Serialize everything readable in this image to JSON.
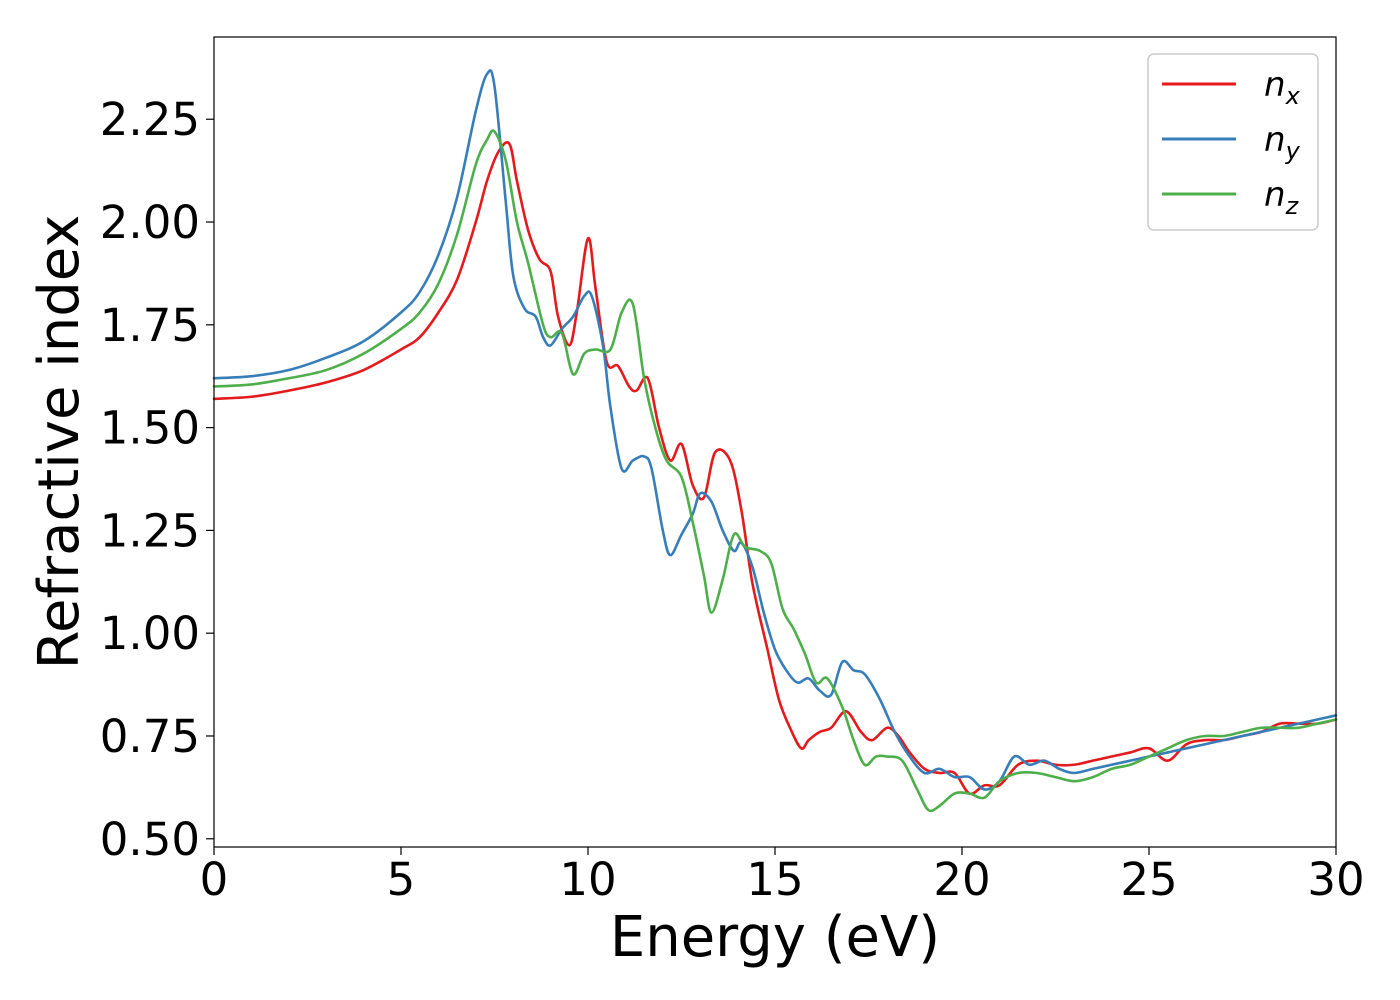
{
  "chart_data": {
    "type": "line",
    "xlabel": "Energy (eV)",
    "ylabel": "Refractive index",
    "xlim": [
      0,
      30
    ],
    "ylim": [
      0.48,
      2.45
    ],
    "x_ticks": [
      0,
      5,
      10,
      15,
      20,
      25,
      30
    ],
    "x_tick_labels": [
      "0",
      "5",
      "10",
      "15",
      "20",
      "25",
      "30"
    ],
    "y_ticks": [
      0.5,
      0.75,
      1.0,
      1.25,
      1.5,
      1.75,
      2.0,
      2.25
    ],
    "y_tick_labels": [
      "0.50",
      "0.75",
      "1.00",
      "1.25",
      "1.50",
      "1.75",
      "2.00",
      "2.25"
    ],
    "grid": false,
    "legend_position": "top-right",
    "series": [
      {
        "name": "n",
        "subscript": "x",
        "color": "#e41a1c",
        "x": [
          0,
          1,
          2,
          3,
          4,
          5,
          5.5,
          6,
          6.5,
          7,
          7.3,
          7.6,
          7.9,
          8.1,
          8.4,
          8.7,
          9.0,
          9.2,
          9.5,
          9.7,
          10.0,
          10.2,
          10.5,
          10.8,
          11.1,
          11.3,
          11.6,
          11.9,
          12.2,
          12.5,
          12.8,
          13.1,
          13.4,
          13.8,
          14.1,
          14.4,
          14.8,
          15.1,
          15.4,
          15.7,
          15.9,
          16.2,
          16.5,
          16.9,
          17.3,
          17.6,
          18.0,
          18.3,
          18.6,
          19.0,
          19.4,
          19.8,
          20.2,
          20.6,
          21.0,
          21.5,
          22.0,
          22.5,
          23.0,
          23.5,
          24.0,
          24.5,
          25.0,
          25.5,
          26.0,
          26.5,
          27.0,
          27.5,
          28.0,
          28.5,
          29.0,
          29.5,
          30.0
        ],
        "y": [
          1.57,
          1.575,
          1.59,
          1.61,
          1.64,
          1.69,
          1.72,
          1.78,
          1.86,
          2.0,
          2.1,
          2.17,
          2.19,
          2.1,
          1.98,
          1.91,
          1.88,
          1.77,
          1.7,
          1.78,
          1.96,
          1.84,
          1.66,
          1.65,
          1.6,
          1.59,
          1.62,
          1.5,
          1.42,
          1.46,
          1.36,
          1.33,
          1.44,
          1.42,
          1.3,
          1.12,
          0.96,
          0.84,
          0.77,
          0.72,
          0.74,
          0.76,
          0.77,
          0.81,
          0.76,
          0.74,
          0.77,
          0.75,
          0.71,
          0.67,
          0.66,
          0.66,
          0.61,
          0.63,
          0.63,
          0.68,
          0.69,
          0.68,
          0.68,
          0.69,
          0.7,
          0.71,
          0.72,
          0.69,
          0.73,
          0.74,
          0.74,
          0.75,
          0.76,
          0.78,
          0.78,
          0.78,
          0.79
        ]
      },
      {
        "name": "n",
        "subscript": "y",
        "color": "#377eb8",
        "x": [
          0,
          1,
          2,
          3,
          4,
          5,
          5.5,
          6,
          6.5,
          7,
          7.3,
          7.5,
          7.8,
          8.0,
          8.3,
          8.6,
          8.8,
          9.0,
          9.3,
          9.6,
          9.9,
          10.1,
          10.4,
          10.6,
          10.9,
          11.2,
          11.5,
          11.7,
          12.0,
          12.2,
          12.5,
          12.8,
          13.0,
          13.3,
          13.6,
          13.9,
          14.1,
          14.4,
          14.7,
          15.0,
          15.3,
          15.6,
          15.9,
          16.2,
          16.5,
          16.8,
          17.1,
          17.4,
          17.8,
          18.2,
          18.6,
          19.0,
          19.4,
          19.8,
          20.2,
          20.6,
          21.0,
          21.4,
          21.8,
          22.2,
          22.6,
          23.0,
          23.5,
          24.0,
          24.5,
          25.0,
          25.5,
          26.0,
          26.5,
          27.0,
          27.5,
          28.0,
          28.5,
          29.0,
          29.5,
          30.0
        ],
        "y": [
          1.62,
          1.625,
          1.64,
          1.67,
          1.71,
          1.78,
          1.83,
          1.92,
          2.06,
          2.27,
          2.36,
          2.33,
          2.05,
          1.87,
          1.79,
          1.77,
          1.72,
          1.7,
          1.74,
          1.77,
          1.82,
          1.82,
          1.7,
          1.55,
          1.4,
          1.42,
          1.43,
          1.4,
          1.25,
          1.19,
          1.24,
          1.29,
          1.34,
          1.32,
          1.25,
          1.2,
          1.22,
          1.16,
          1.05,
          0.96,
          0.91,
          0.88,
          0.89,
          0.86,
          0.85,
          0.93,
          0.91,
          0.9,
          0.84,
          0.76,
          0.7,
          0.66,
          0.67,
          0.65,
          0.65,
          0.62,
          0.64,
          0.7,
          0.68,
          0.69,
          0.67,
          0.66,
          0.67,
          0.68,
          0.69,
          0.7,
          0.71,
          0.72,
          0.73,
          0.74,
          0.75,
          0.76,
          0.77,
          0.78,
          0.79,
          0.8
        ]
      },
      {
        "name": "n",
        "subscript": "z",
        "color": "#4daf4a",
        "x": [
          0,
          1,
          2,
          3,
          4,
          5,
          5.5,
          6,
          6.5,
          7,
          7.3,
          7.5,
          7.8,
          8.1,
          8.4,
          8.8,
          9.0,
          9.3,
          9.6,
          9.9,
          10.2,
          10.6,
          10.9,
          11.2,
          11.5,
          11.8,
          12.1,
          12.5,
          12.8,
          13.1,
          13.3,
          13.6,
          13.9,
          14.2,
          14.6,
          14.9,
          15.2,
          15.5,
          15.8,
          16.1,
          16.4,
          16.8,
          17.1,
          17.4,
          17.7,
          18.0,
          18.4,
          18.8,
          19.1,
          19.4,
          19.8,
          20.2,
          20.6,
          21.0,
          21.5,
          22.0,
          22.5,
          23.0,
          23.5,
          24.0,
          24.5,
          25.0,
          25.5,
          26.0,
          26.5,
          27.0,
          27.5,
          28.0,
          28.5,
          29.0,
          29.5,
          30.0
        ],
        "y": [
          1.6,
          1.605,
          1.62,
          1.64,
          1.68,
          1.74,
          1.78,
          1.85,
          1.97,
          2.14,
          2.2,
          2.22,
          2.15,
          2.0,
          1.9,
          1.75,
          1.72,
          1.73,
          1.63,
          1.68,
          1.69,
          1.69,
          1.78,
          1.8,
          1.62,
          1.5,
          1.42,
          1.38,
          1.27,
          1.14,
          1.05,
          1.13,
          1.24,
          1.21,
          1.2,
          1.17,
          1.06,
          1.01,
          0.95,
          0.88,
          0.89,
          0.82,
          0.74,
          0.68,
          0.7,
          0.7,
          0.69,
          0.62,
          0.57,
          0.58,
          0.61,
          0.61,
          0.6,
          0.64,
          0.66,
          0.66,
          0.65,
          0.64,
          0.65,
          0.67,
          0.68,
          0.7,
          0.72,
          0.74,
          0.75,
          0.75,
          0.76,
          0.77,
          0.77,
          0.77,
          0.78,
          0.79
        ]
      }
    ]
  }
}
